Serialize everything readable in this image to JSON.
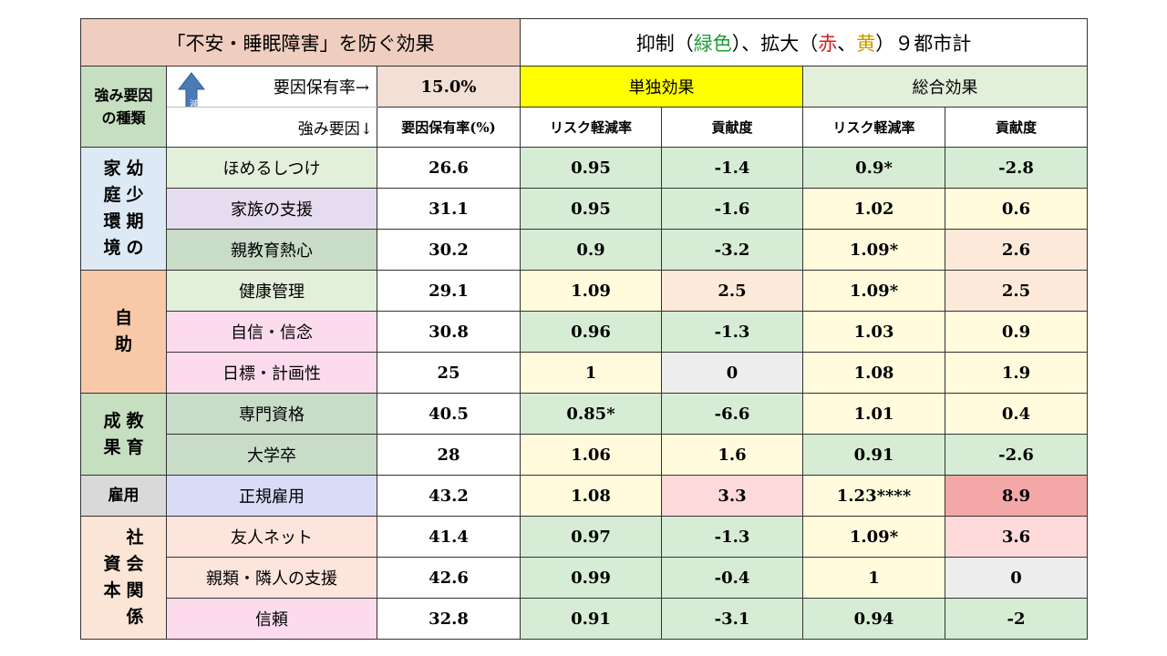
{
  "title_left": "「不安・睡眠障害」を防ぐ効果",
  "title_right": {
    "prefix": "抑制（",
    "green": "緑色",
    "mid": "）、拡大（",
    "red": "赤",
    "sep": "、",
    "yellow": "黄",
    "suffix": "）９都市計"
  },
  "header": {
    "strength_type": [
      "強み要因",
      "の種類"
    ],
    "risk_arrow_text": "リスク軽減",
    "factor_rate_label": "要因保有率→",
    "factor_rate_value": "15.0%",
    "single_effect": "単独効果",
    "total_effect": "総合効果",
    "factor_label": "強み要因↓",
    "rate_col": "要因保有率(%)",
    "risk_reduction": "リスク軽減率",
    "contribution": "貢献度",
    "risk_reduction2": "リスク軽減率",
    "contribution2": "貢献度"
  },
  "categories": {
    "family": {
      "col1": [
        "家",
        "庭",
        "環",
        "境"
      ],
      "col2": [
        "幼",
        "少",
        "期",
        "の"
      ]
    },
    "self": [
      "自",
      "助"
    ],
    "edu": {
      "col1": [
        "成",
        "果"
      ],
      "col2": [
        "教",
        "育"
      ]
    },
    "employ": "雇用",
    "social": {
      "col1": [
        "社",
        "会",
        "関",
        "係"
      ],
      "col2": [
        "資",
        "本"
      ]
    }
  },
  "rows": [
    {
      "factor": "ほめるしつけ",
      "rate": "26.6",
      "s_risk": "0.95",
      "s_con": "-1.4",
      "t_risk": "0.9*",
      "t_con": "-2.8"
    },
    {
      "factor": "家族の支援",
      "rate": "31.1",
      "s_risk": "0.95",
      "s_con": "-1.6",
      "t_risk": "1.02",
      "t_con": "0.6"
    },
    {
      "factor": "親教育熱心",
      "rate": "30.2",
      "s_risk": "0.9",
      "s_con": "-3.2",
      "t_risk": "1.09*",
      "t_con": "2.6"
    },
    {
      "factor": "健康管理",
      "rate": "29.1",
      "s_risk": "1.09",
      "s_con": "2.5",
      "t_risk": "1.09*",
      "t_con": "2.5"
    },
    {
      "factor": "自信・信念",
      "rate": "30.8",
      "s_risk": "0.96",
      "s_con": "-1.3",
      "t_risk": "1.03",
      "t_con": "0.9"
    },
    {
      "factor": "日標・計画性",
      "rate": "25",
      "s_risk": "1",
      "s_con": "0",
      "t_risk": "1.08",
      "t_con": "1.9"
    },
    {
      "factor": "専門資格",
      "rate": "40.5",
      "s_risk": "0.85*",
      "s_con": "-6.6",
      "t_risk": "1.01",
      "t_con": "0.4"
    },
    {
      "factor": "大学卒",
      "rate": "28",
      "s_risk": "1.06",
      "s_con": "1.6",
      "t_risk": "0.91",
      "t_con": "-2.6"
    },
    {
      "factor": "正規雇用",
      "rate": "43.2",
      "s_risk": "1.08",
      "s_con": "3.3",
      "t_risk": "1.23****",
      "t_con": "8.9"
    },
    {
      "factor": "友人ネット",
      "rate": "41.4",
      "s_risk": "0.97",
      "s_con": "-1.3",
      "t_risk": "1.09*",
      "t_con": "3.6"
    },
    {
      "factor": "親類・隣人の支援",
      "rate": "42.6",
      "s_risk": "0.99",
      "s_con": "-0.4",
      "t_risk": "1",
      "t_con": "0"
    },
    {
      "factor": "信頼",
      "rate": "32.8",
      "s_risk": "0.91",
      "s_con": "-3.1",
      "t_risk": "0.94",
      "t_con": "-2"
    }
  ],
  "colors": {
    "title_bg": "#efcdbf",
    "rate_bg": "#f2dfd6",
    "yellow_header": "#ffff00",
    "total_header": "#e2efda",
    "cat_family": "#ddeaf6",
    "cat_self": "#f7c9a8",
    "cat_edu": "#c6dfc0",
    "cat_employ": "#d9d9d9",
    "cat_social": "#fbe5d6",
    "green": "#d6ecd4",
    "yellow": "#fffbdc",
    "peach": "#fde9d9",
    "pink": "#fdd9d9",
    "red": "#f4a7a7",
    "gray": "#ededed"
  }
}
